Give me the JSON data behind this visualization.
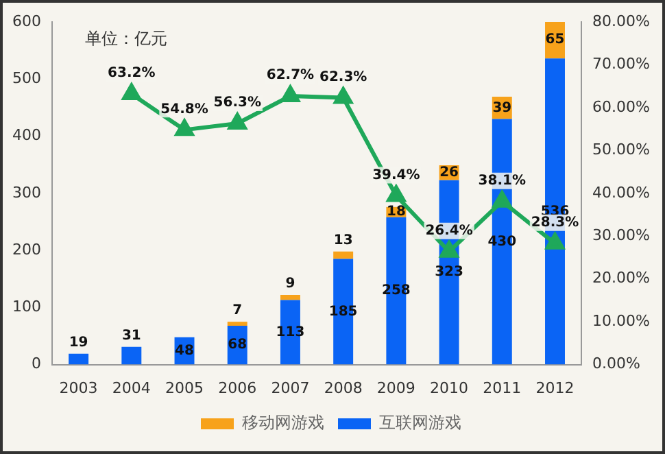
{
  "chart_data": {
    "type": "bar",
    "stacked": true,
    "categories": [
      "2003",
      "2004",
      "2005",
      "2006",
      "2007",
      "2008",
      "2009",
      "2010",
      "2011",
      "2012"
    ],
    "series": [
      {
        "name": "互联网游戏",
        "color": "#0a64f5",
        "values": [
          19,
          31,
          48,
          68,
          113,
          185,
          258,
          323,
          430,
          536
        ],
        "value_labels": [
          "19",
          "31",
          "48",
          "68",
          "113",
          "185",
          "258",
          "323",
          "430",
          "536"
        ]
      },
      {
        "name": "移动网游戏",
        "color": "#f7a21b",
        "values": [
          null,
          null,
          null,
          7,
          9,
          13,
          18,
          26,
          39,
          65
        ],
        "value_labels": [
          null,
          null,
          null,
          "7",
          "9",
          "13",
          "18",
          "26",
          "39",
          "65"
        ]
      },
      {
        "type": "line",
        "axis": "y2",
        "color": "#1fa85a",
        "marker": "triangle",
        "values": [
          null,
          63.2,
          54.8,
          56.3,
          62.7,
          62.3,
          39.4,
          26.4,
          38.1,
          28.3
        ],
        "value_labels": [
          null,
          "63.2%",
          "54.8%",
          "56.3%",
          "62.7%",
          "62.3%",
          "39.4%",
          "26.4%",
          "38.1%",
          "28.3%"
        ]
      }
    ],
    "ylim": [
      0,
      600
    ],
    "yticks": [
      0,
      100,
      200,
      300,
      400,
      500,
      600
    ],
    "y2lim": [
      0,
      80
    ],
    "y2ticks": [
      {
        "value": 0,
        "label": "0.00%"
      },
      {
        "value": 10,
        "label": "10.00%"
      },
      {
        "value": 20,
        "label": "20.00%"
      },
      {
        "value": 30,
        "label": "30.00%"
      },
      {
        "value": 40,
        "label": "40.00%"
      },
      {
        "value": 50,
        "label": "50.00%"
      },
      {
        "value": 60,
        "label": "60.00%"
      },
      {
        "value": 70,
        "label": "70.00%"
      },
      {
        "value": 80,
        "label": "80.00%"
      }
    ],
    "annotations": [
      "单位：亿元"
    ],
    "grid": false,
    "legend": "bottom"
  }
}
